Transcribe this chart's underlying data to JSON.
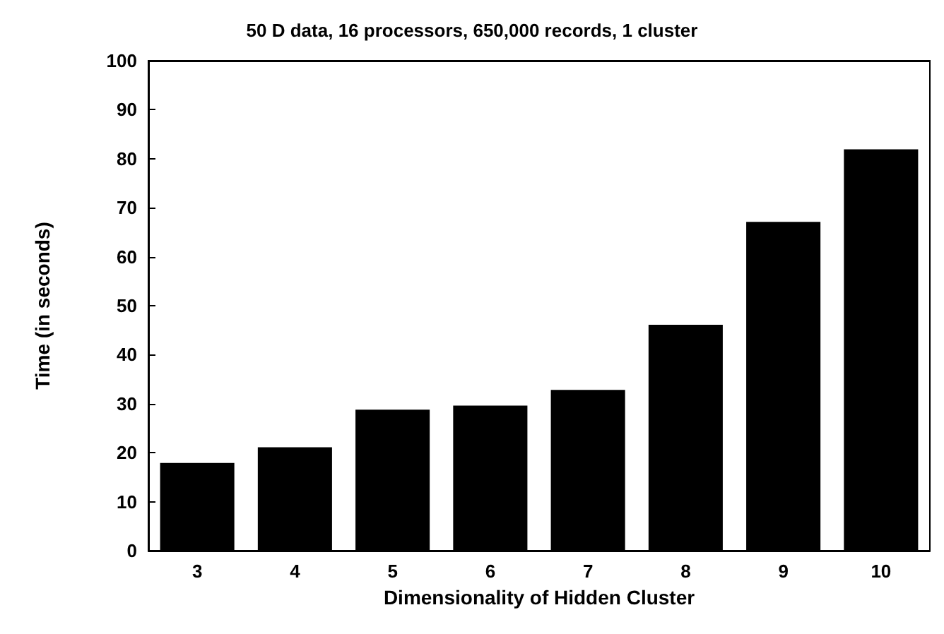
{
  "chart_data": {
    "type": "bar",
    "title": "50 D data, 16 processors, 650,000 records, 1 cluster",
    "xlabel": "Dimensionality of Hidden Cluster",
    "ylabel": "Time (in seconds)",
    "categories": [
      "3",
      "4",
      "5",
      "6",
      "7",
      "8",
      "9",
      "10"
    ],
    "values": [
      17.9,
      21.1,
      28.8,
      29.6,
      32.8,
      46.1,
      67.1,
      81.9
    ],
    "color": "#000000",
    "ylim": [
      0,
      100
    ],
    "yticks": [
      0,
      10,
      20,
      30,
      40,
      50,
      60,
      70,
      80,
      90,
      100
    ],
    "grid": false
  }
}
